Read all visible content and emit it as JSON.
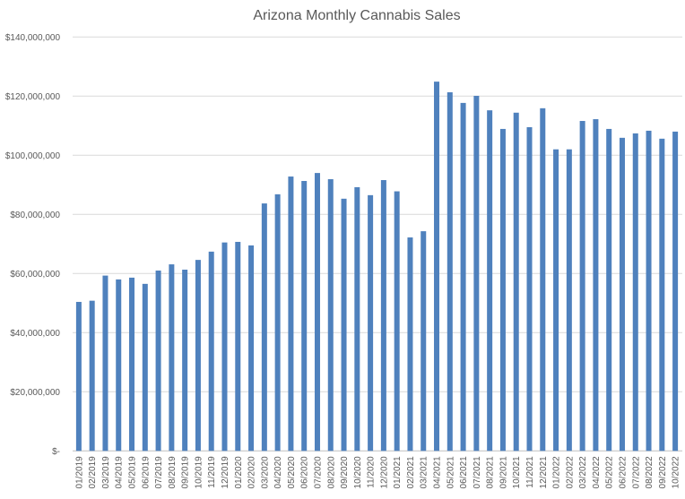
{
  "chart_data": {
    "type": "bar",
    "title": "Arizona Monthly Cannabis Sales",
    "xlabel": "",
    "ylabel": "",
    "ylim": [
      0,
      140000000
    ],
    "yticks": [
      0,
      20000000,
      40000000,
      60000000,
      80000000,
      100000000,
      120000000,
      140000000
    ],
    "ytick_labels": [
      "$-",
      "$20,000,000",
      "$40,000,000",
      "$60,000,000",
      "$80,000,000",
      "$100,000,000",
      "$120,000,000",
      "$140,000,000"
    ],
    "grid": true,
    "bar_color": "#4f81bd",
    "categories": [
      "01/2019",
      "02/2019",
      "03/2019",
      "04/2019",
      "05/2019",
      "06/2019",
      "07/2019",
      "08/2019",
      "09/2019",
      "10/2019",
      "11/2019",
      "12/2019",
      "01/2020",
      "02/2020",
      "03/2020",
      "04/2020",
      "05/2020",
      "06/2020",
      "07/2020",
      "08/2020",
      "09/2020",
      "10/2020",
      "11/2020",
      "12/2020",
      "01/2021",
      "02/2021",
      "03/2021",
      "04/2021",
      "05/2021",
      "06/2021",
      "07/2021",
      "08/2021",
      "09/2021",
      "10/2021",
      "11/2021",
      "12/2021",
      "01/2022",
      "02/2022",
      "03/2022",
      "04/2022",
      "05/2022",
      "06/2022",
      "07/2022",
      "08/2022",
      "09/2022",
      "10/2022"
    ],
    "values": [
      50400000,
      50800000,
      59300000,
      58000000,
      58600000,
      56500000,
      61000000,
      63100000,
      61300000,
      64600000,
      67400000,
      70500000,
      70700000,
      69500000,
      83700000,
      86800000,
      92800000,
      91300000,
      94000000,
      91900000,
      85300000,
      89200000,
      86500000,
      91600000,
      87800000,
      72200000,
      74300000,
      124900000,
      121300000,
      117700000,
      120100000,
      115200000,
      108900000,
      114400000,
      109500000,
      115900000,
      102000000,
      102000000,
      111600000,
      112200000,
      108900000,
      105900000,
      107400000,
      108300000,
      105600000,
      108000000
    ]
  }
}
